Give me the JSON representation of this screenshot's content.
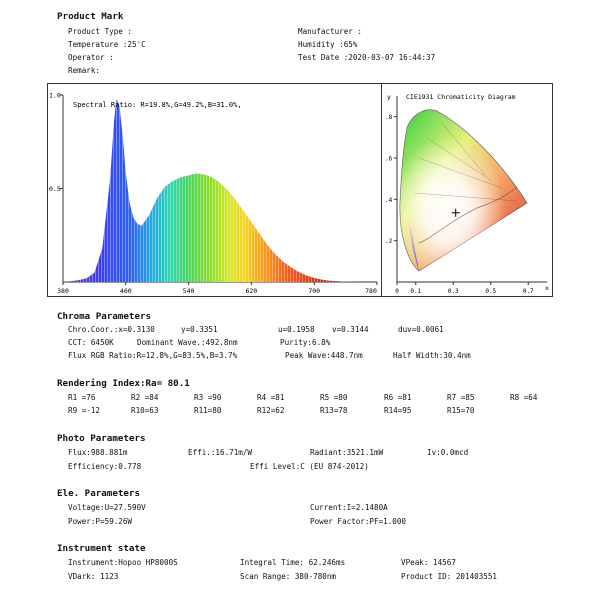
{
  "product_mark": {
    "title": "Product Mark",
    "product_type": "Product Type :",
    "manufacturer": "Manufacturer :",
    "temperature": "Temperature :25'C",
    "humidity": "Humidity :65%",
    "operator": "Operator :",
    "test_date": "Test Date :2020-03-07 16:44:37",
    "remark": "Remark:"
  },
  "spectrum": {
    "ratio_text": "Spectral Ratio:  R=19.8%,G=49.2%,B=31.0%,",
    "y_ticks": [
      "1.0",
      "0.5"
    ],
    "x_ticks": [
      "380",
      "460",
      "540",
      "620",
      "700",
      "780"
    ]
  },
  "cie": {
    "title": "CIE1931 Chromaticity Diagram",
    "y_axis": "y",
    "x_axis": "x",
    "y_ticks": [
      ".8",
      ".6",
      ".4",
      ".2"
    ],
    "x_ticks": [
      "0",
      "0.1",
      "0.3",
      "0.5",
      "0.7"
    ],
    "point": {
      "x": 0.313,
      "y": 0.3351
    }
  },
  "chart_data": [
    {
      "type": "area",
      "title": "Spectral Ratio:  R=19.8%,G=49.2%,B=31.0%,",
      "xlim": [
        380,
        780
      ],
      "ylim": [
        0,
        1.0
      ],
      "x": [
        380,
        390,
        400,
        410,
        420,
        430,
        440,
        445,
        448,
        452,
        456,
        460,
        465,
        470,
        475,
        480,
        490,
        500,
        510,
        520,
        530,
        540,
        550,
        560,
        570,
        580,
        590,
        600,
        610,
        620,
        630,
        640,
        650,
        660,
        670,
        680,
        690,
        700,
        710,
        720,
        740,
        760,
        780
      ],
      "y": [
        0.0,
        0.005,
        0.01,
        0.02,
        0.05,
        0.18,
        0.55,
        0.86,
        0.98,
        0.94,
        0.78,
        0.58,
        0.42,
        0.34,
        0.31,
        0.3,
        0.36,
        0.45,
        0.51,
        0.54,
        0.56,
        0.57,
        0.58,
        0.575,
        0.56,
        0.53,
        0.49,
        0.44,
        0.38,
        0.32,
        0.26,
        0.2,
        0.15,
        0.11,
        0.08,
        0.055,
        0.035,
        0.022,
        0.013,
        0.007,
        0.002,
        0.0,
        0.0
      ]
    },
    {
      "type": "scatter",
      "title": "CIE1931 Chromaticity Diagram",
      "x": [
        0.313
      ],
      "y": [
        0.3351
      ]
    }
  ],
  "chroma": {
    "title": "Chroma Parameters",
    "chro_coor": "Chro.Coor.:x=0.3130",
    "y": "y=0.3351",
    "u": "u=0.1958",
    "v": "v=0.3144",
    "duv": "duv=0.0061",
    "cct": "CCT: 6450K",
    "dominant": "Dominant Wave.:492.8nm",
    "purity": "Purity:6.8%",
    "flux_rgb": "Flux RGB Ratio:R=12.8%,G=83.5%,B=3.7%",
    "peak": "Peak Wave:448.7nm",
    "half_width": "Half Width:30.4nm"
  },
  "rendering": {
    "title": "Rendering Index:Ra= 80.1",
    "row1": [
      "R1 =76",
      "R2 =84",
      "R3 =90",
      "R4 =81",
      "R5 =80",
      "R6 =81",
      "R7 =85",
      "R8 =64"
    ],
    "row2": [
      "R9 =-12",
      "R10=63",
      "R11=80",
      "R12=62",
      "R13=78",
      "R14=95",
      "R15=70"
    ]
  },
  "photo": {
    "title": "Photo Parameters",
    "flux": "Flux:988.881m",
    "effi": "Effi.:16.71m/W",
    "radiant": "Radiant:3521.1mW",
    "iv": "Iv:0.0mcd",
    "efficiency": "Efficiency:0.778",
    "effi_level": "Effi Level:C (EU 874-2012)"
  },
  "ele": {
    "title": "Ele. Parameters",
    "voltage": "Voltage:U=27.590V",
    "current": "Current:I=2.1480A",
    "power": "Power:P=59.26W",
    "pf": "Power Factor:PF=1.000"
  },
  "instrument": {
    "title": "Instrument state",
    "instrument": "Instrument:Hopoo HP8000S",
    "integral": "Integral Time: 62.246ms",
    "vpeak": "VPeak: 14567",
    "vdark": "VDark: 1123",
    "scan": "Scan Range: 380-780nm",
    "product_id": "Product ID: 201403551"
  }
}
